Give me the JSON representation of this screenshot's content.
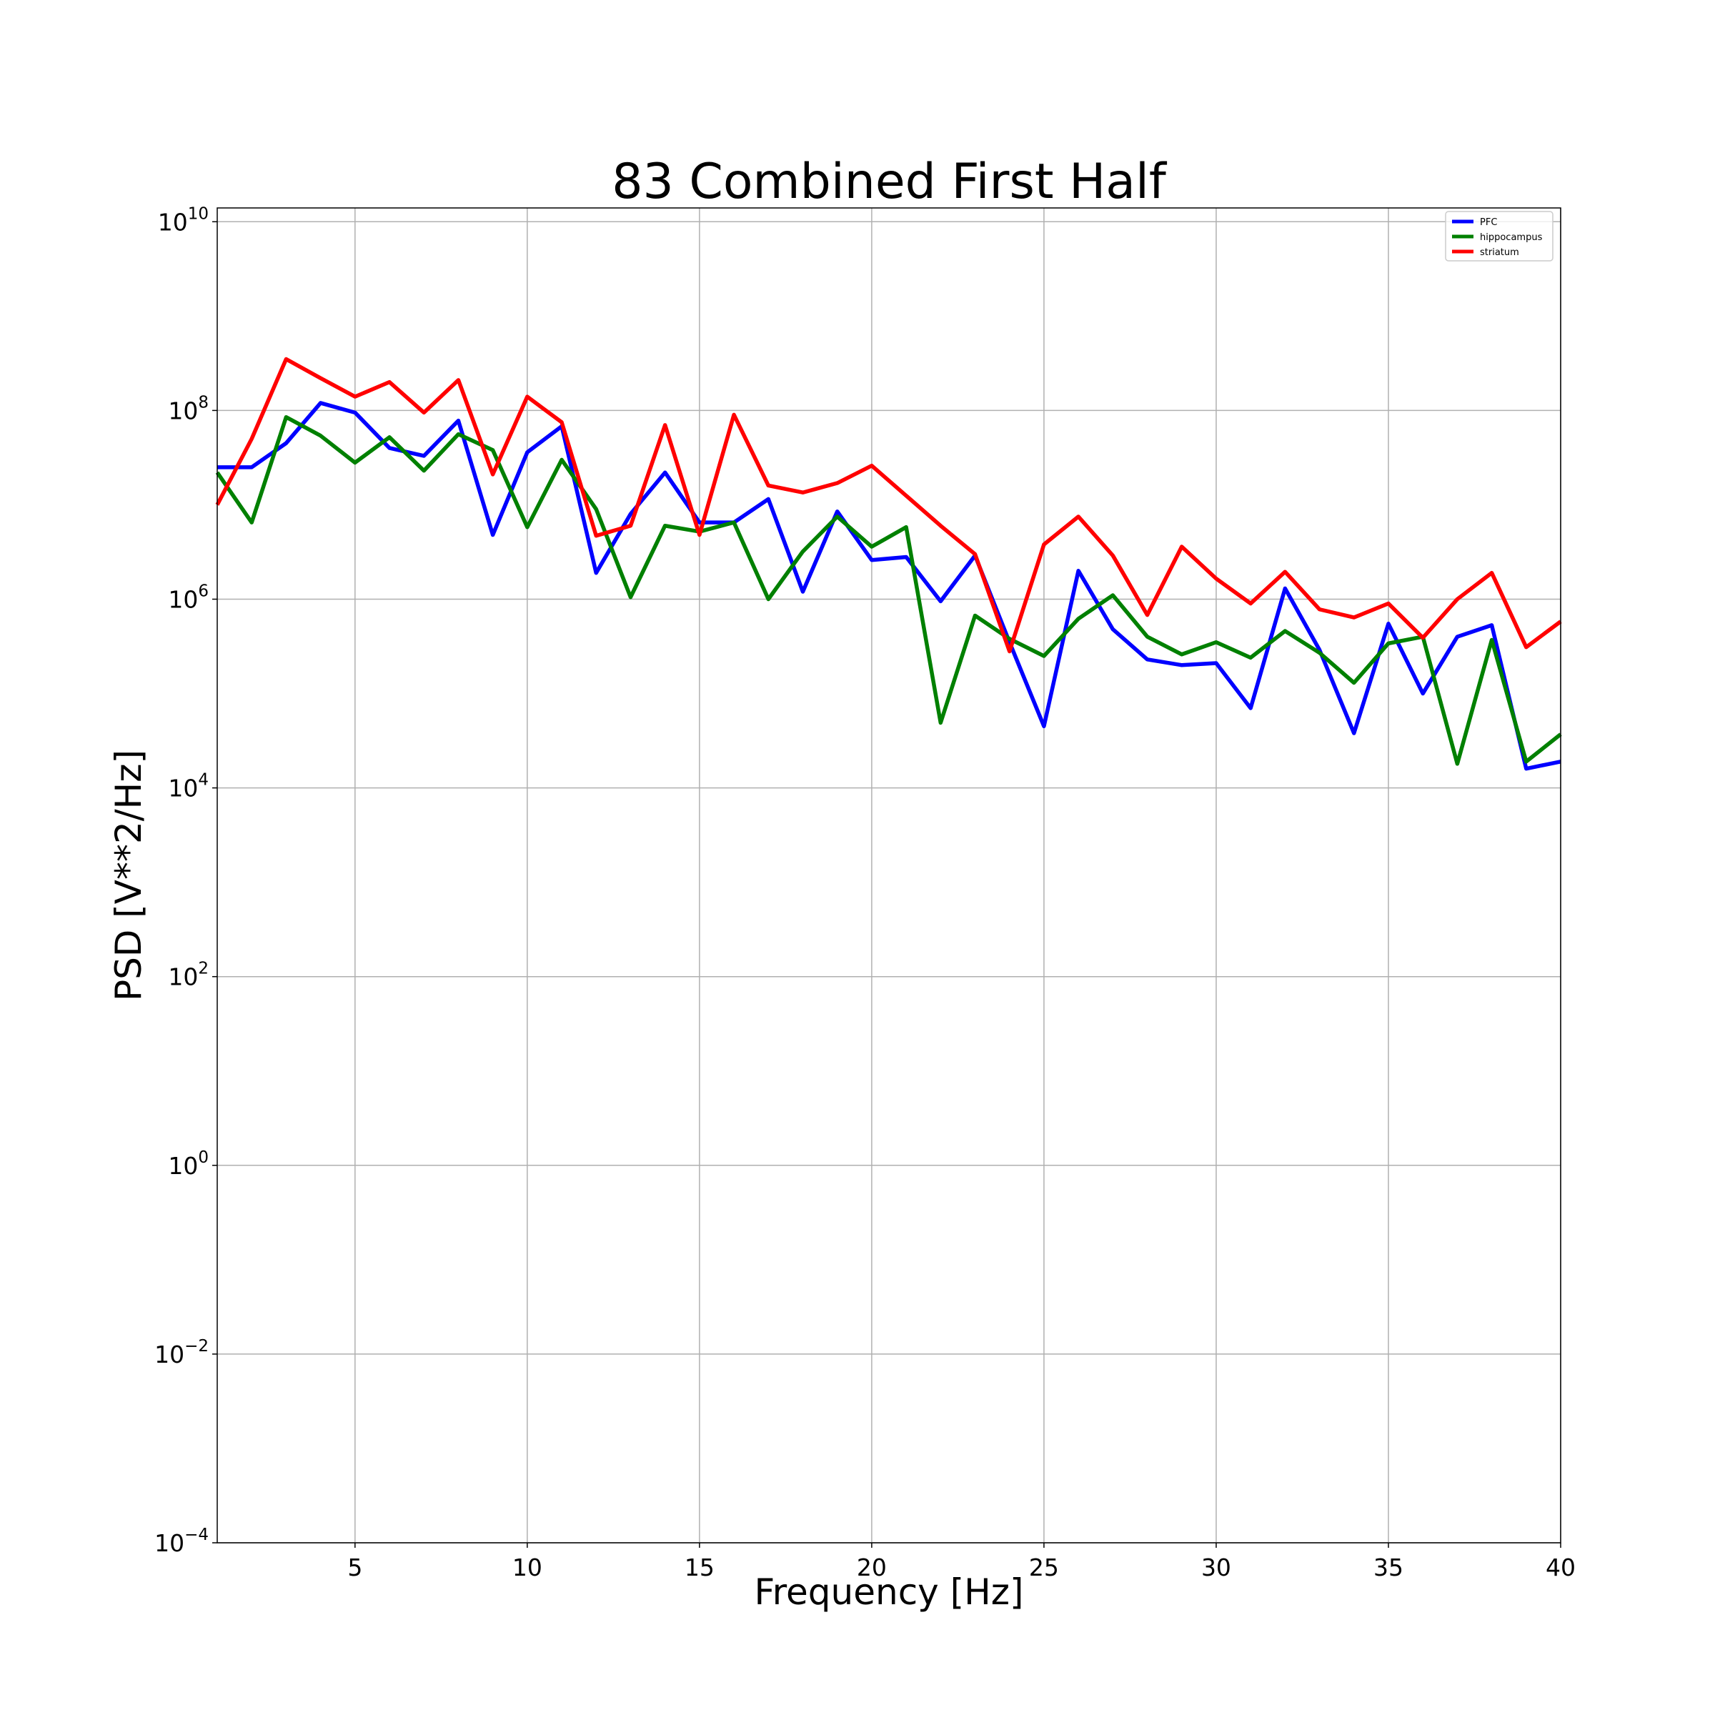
{
  "chart_data": {
    "type": "line",
    "title": "83 Combined First Half",
    "xlabel": "Frequency [Hz]",
    "ylabel": "PSD [V**2/Hz]",
    "xlim": [
      1,
      40
    ],
    "ylim": [
      0.0001,
      14000000000
    ],
    "yscale": "log",
    "grid": true,
    "legend_position": "top-right",
    "xticks": [
      {
        "value": 5,
        "label": "5"
      },
      {
        "value": 10,
        "label": "10"
      },
      {
        "value": 15,
        "label": "15"
      },
      {
        "value": 20,
        "label": "20"
      },
      {
        "value": 25,
        "label": "25"
      },
      {
        "value": 30,
        "label": "30"
      },
      {
        "value": 35,
        "label": "35"
      },
      {
        "value": 40,
        "label": "40"
      }
    ],
    "yticks": [
      {
        "value": 10000000000.0,
        "base": "10",
        "exp": "10"
      },
      {
        "value": 100000000.0,
        "base": "10",
        "exp": "8"
      },
      {
        "value": 1000000.0,
        "base": "10",
        "exp": "6"
      },
      {
        "value": 10000.0,
        "base": "10",
        "exp": "4"
      },
      {
        "value": 100.0,
        "base": "10",
        "exp": "2"
      },
      {
        "value": 1,
        "base": "10",
        "exp": "0"
      },
      {
        "value": 0.01,
        "base": "10",
        "exp": "−2"
      },
      {
        "value": 0.0001,
        "base": "10",
        "exp": "−4"
      }
    ],
    "x": [
      1,
      2,
      3,
      4,
      5,
      6,
      7,
      8,
      9,
      10,
      11,
      12,
      13,
      14,
      15,
      16,
      17,
      18,
      19,
      20,
      21,
      22,
      23,
      24,
      25,
      26,
      27,
      28,
      29,
      30,
      31,
      32,
      33,
      34,
      35,
      36,
      37,
      38,
      39,
      40
    ],
    "series": [
      {
        "name": "PFC",
        "color": "#0000ff",
        "values": [
          25000000,
          25000000,
          45000000,
          120000000,
          95000000,
          40000000,
          33000000,
          78000000,
          4800000,
          36000000,
          68000000,
          1900000,
          8000000,
          22000000,
          6500000,
          6500000,
          11500000,
          1200000,
          8500000,
          2600000,
          2800000,
          950000,
          2900000,
          350000,
          45000,
          2000000,
          480000,
          230000,
          200000,
          210000,
          70000,
          1300000,
          290000,
          38000,
          550000,
          100000,
          400000,
          530000,
          16000,
          19000
        ]
      },
      {
        "name": "hippocampus",
        "color": "#008000",
        "values": [
          22000000,
          6500000,
          85000000,
          54000000,
          28000000,
          52000000,
          23000000,
          56000000,
          38000000,
          5800000,
          30000000,
          9000000,
          1050000,
          6000000,
          5200000,
          6500000,
          1000000,
          3200000,
          7500000,
          3600000,
          5800000,
          49000,
          670000,
          380000,
          250000,
          620000,
          1100000,
          400000,
          260000,
          350000,
          240000,
          460000,
          270000,
          130000,
          340000,
          400000,
          18000,
          370000,
          19000,
          37000
        ]
      },
      {
        "name": "striatum",
        "color": "#ff0000",
        "values": [
          10000000,
          50000000,
          350000000,
          220000000,
          140000000,
          200000000,
          95000000,
          210000000,
          21000000,
          140000000,
          75000000,
          4700000,
          6000000,
          70000000,
          4800000,
          90000000,
          16000000,
          13500000,
          17000000,
          26000000,
          12500000,
          6000000,
          3000000,
          280000,
          3800000,
          7500000,
          2900000,
          680000,
          3600000,
          1650000,
          900000,
          1950000,
          780000,
          640000,
          900000,
          390000,
          1000000,
          1900000,
          310000,
          580000
        ]
      }
    ]
  }
}
